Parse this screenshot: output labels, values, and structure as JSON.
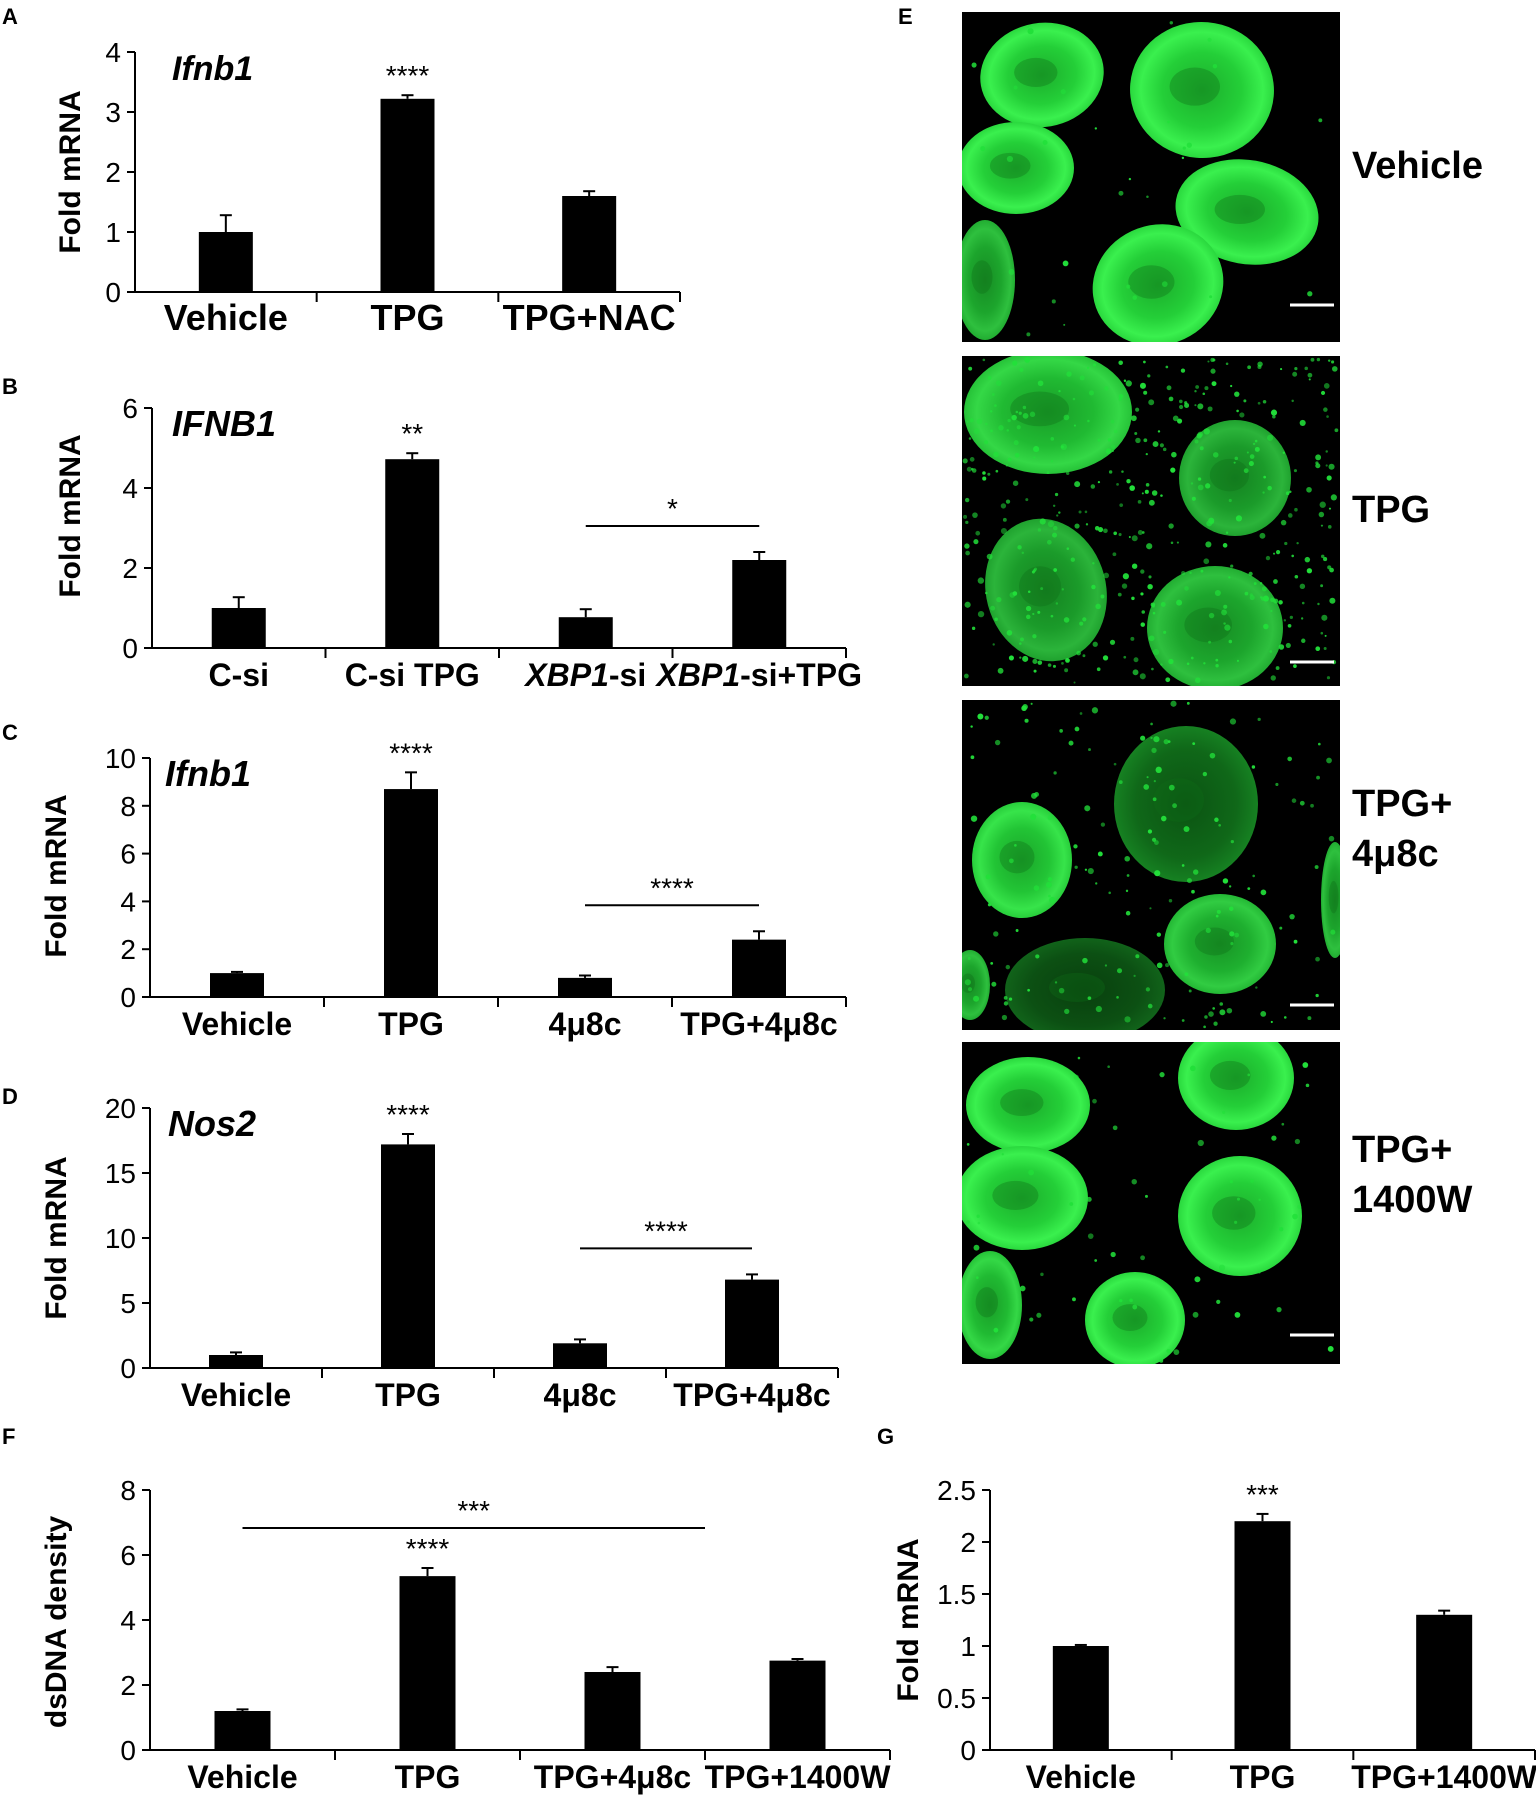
{
  "figure": {
    "panel_letters": {
      "A": "A",
      "B": "B",
      "C": "C",
      "D": "D",
      "E": "E",
      "F": "F",
      "G": "G"
    },
    "micrograph_labels": [
      {
        "lines": [
          "Vehicle"
        ]
      },
      {
        "lines": [
          "TPG"
        ]
      },
      {
        "lines": [
          "TPG+",
          "4μ8c"
        ]
      },
      {
        "lines": [
          "TPG+",
          "1400W"
        ]
      }
    ],
    "micrograph_color": "#22e03a"
  },
  "chart_data": [
    {
      "panel": "A",
      "type": "bar",
      "title": "Ifnb1",
      "title_italic": true,
      "ylabel": "Fold mRNA",
      "ylim": [
        0,
        4
      ],
      "yticks": [
        "0",
        "1",
        "2",
        "3",
        "4"
      ],
      "categories": [
        "Vehicle",
        "TPG",
        "TPG+NAC"
      ],
      "values": [
        1.0,
        3.22,
        1.6
      ],
      "errors": [
        0.28,
        0.06,
        0.08
      ],
      "stars": [
        "",
        "****",
        ""
      ],
      "brackets": [],
      "bar_color": "#000000"
    },
    {
      "panel": "B",
      "type": "bar",
      "title": "IFNB1",
      "title_italic": true,
      "ylabel": "Fold mRNA",
      "ylim": [
        0,
        6
      ],
      "yticks": [
        "0",
        "2",
        "4",
        "6"
      ],
      "categories": [
        "C-si",
        "C-si TPG",
        "XBP1-si",
        "XBP1-si+TPG"
      ],
      "category_parts": [
        [
          {
            "t": "C-si",
            "i": false
          }
        ],
        [
          {
            "t": "C-si TPG",
            "i": false
          }
        ],
        [
          {
            "t": "XBP1",
            "i": true
          },
          {
            "t": "-si",
            "i": false
          }
        ],
        [
          {
            "t": "XBP1",
            "i": true
          },
          {
            "t": "-si+TPG",
            "i": false
          }
        ]
      ],
      "values": [
        1.0,
        4.72,
        0.77,
        2.2
      ],
      "errors": [
        0.27,
        0.15,
        0.2,
        0.2
      ],
      "stars": [
        "",
        "**",
        "",
        ""
      ],
      "brackets": [
        {
          "from": 2,
          "to": 3,
          "label": "*"
        }
      ],
      "bar_color": "#000000"
    },
    {
      "panel": "C",
      "type": "bar",
      "title": "Ifnb1",
      "title_italic": true,
      "ylabel": "Fold mRNA",
      "ylim": [
        0,
        10
      ],
      "yticks": [
        "0",
        "2",
        "4",
        "6",
        "8",
        "10"
      ],
      "categories": [
        "Vehicle",
        "TPG",
        "4μ8c",
        "TPG+4μ8c"
      ],
      "values": [
        1.0,
        8.7,
        0.8,
        2.4
      ],
      "errors": [
        0.05,
        0.7,
        0.1,
        0.35
      ],
      "stars": [
        "",
        "****",
        "",
        ""
      ],
      "brackets": [
        {
          "from": 2,
          "to": 3,
          "label": "****"
        }
      ],
      "bar_color": "#000000"
    },
    {
      "panel": "D",
      "type": "bar",
      "title": "Nos2",
      "title_italic": true,
      "ylabel": "Fold mRNA",
      "ylim": [
        0,
        20
      ],
      "yticks": [
        "0",
        "5",
        "10",
        "15",
        "20"
      ],
      "categories": [
        "Vehicle",
        "TPG",
        "4μ8c",
        "TPG+4μ8c"
      ],
      "values": [
        1.0,
        17.2,
        1.9,
        6.8
      ],
      "errors": [
        0.2,
        0.8,
        0.3,
        0.4
      ],
      "stars": [
        "",
        "****",
        "",
        ""
      ],
      "brackets": [
        {
          "from": 2,
          "to": 3,
          "label": "****"
        }
      ],
      "bar_color": "#000000"
    },
    {
      "panel": "F",
      "type": "bar",
      "title": "",
      "title_italic": false,
      "ylabel": "dsDNA density",
      "ylim": [
        0,
        8
      ],
      "yticks": [
        "0",
        "2",
        "4",
        "6",
        "8"
      ],
      "categories": [
        "Vehicle",
        "TPG",
        "TPG+4μ8c",
        "TPG+1400W"
      ],
      "values": [
        1.2,
        5.35,
        2.4,
        2.75
      ],
      "errors": [
        0.05,
        0.25,
        0.15,
        0.05
      ],
      "stars": [
        "",
        "****",
        "",
        ""
      ],
      "brackets": [
        {
          "from": 0,
          "to": 2.5,
          "label": "***"
        }
      ],
      "bar_color": "#000000"
    },
    {
      "panel": "G",
      "type": "bar",
      "title": "",
      "title_italic": false,
      "ylabel": "Fold mRNA",
      "ylim": [
        0,
        2.5
      ],
      "yticks": [
        "0",
        "0.5",
        "1",
        "1.5",
        "2",
        "2.5"
      ],
      "categories": [
        "Vehicle",
        "TPG",
        "TPG+1400W"
      ],
      "values": [
        1.0,
        2.2,
        1.3
      ],
      "errors": [
        0.01,
        0.07,
        0.04
      ],
      "stars": [
        "",
        "***",
        ""
      ],
      "brackets": [],
      "bar_color": "#000000"
    }
  ]
}
